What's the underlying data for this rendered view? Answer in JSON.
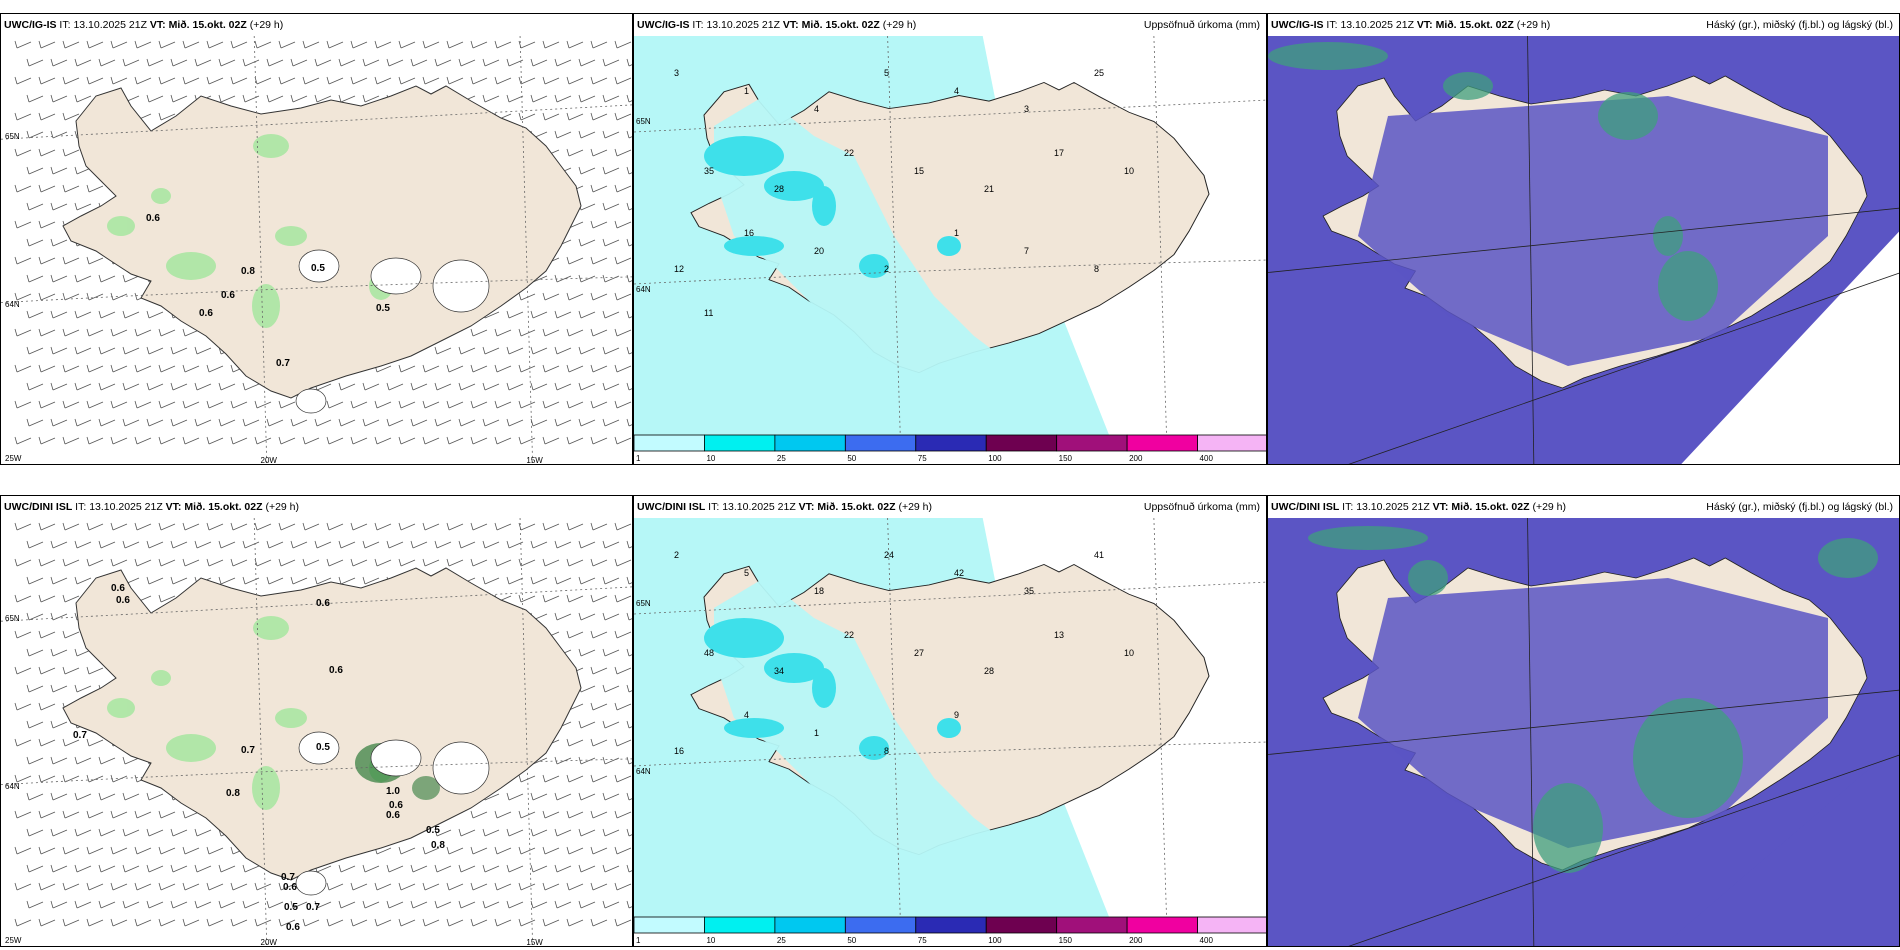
{
  "panels": [
    {
      "model": "UWC/IG-IS",
      "it_label": "IT:",
      "it_value": "13.10.2025 21Z",
      "vt_label": "VT:",
      "vt_value": "Mið. 15.okt. 02Z",
      "lead": "(+29 h)",
      "right_title": "",
      "kind": "wind",
      "values": [
        "0.6",
        "0.8",
        "0.5",
        "0.6",
        "0.6",
        "0.5",
        "0.7"
      ],
      "axis_labels": [
        "65N",
        "64N",
        "25W",
        "20W",
        "15W"
      ]
    },
    {
      "model": "UWC/IG-IS",
      "it_label": "IT:",
      "it_value": "13.10.2025 21Z",
      "vt_label": "VT:",
      "vt_value": "Mið. 15.okt. 02Z",
      "lead": "(+29 h)",
      "right_title": "Uppsöfnuð úrkoma (mm)",
      "kind": "precip",
      "values": [
        "3",
        "1",
        "4",
        "5",
        "4",
        "3",
        "25",
        "35",
        "28",
        "22",
        "15",
        "21",
        "17",
        "10",
        "12",
        "16",
        "20",
        "2",
        "1",
        "7",
        "8",
        "11"
      ],
      "axis_labels": [
        "65N",
        "64N"
      ]
    },
    {
      "model": "UWC/IG-IS",
      "it_label": "IT:",
      "it_value": "13.10.2025 21Z",
      "vt_label": "VT:",
      "vt_value": "Mið. 15.okt. 02Z",
      "lead": "(+29 h)",
      "right_title": "Háský (gr.), miðský (fj.bl.) og lágský (bl.)",
      "kind": "cloud",
      "values": [],
      "axis_labels": []
    },
    {
      "model": "UWC/DINI ISL",
      "it_label": "IT:",
      "it_value": "13.10.2025 21Z",
      "vt_label": "VT:",
      "vt_value": "Mið. 15.okt. 02Z",
      "lead": "(+29 h)",
      "right_title": "",
      "kind": "wind",
      "values": [
        "0.6",
        "0.6",
        "0.6",
        "0.6",
        "0.7",
        "0.7",
        "0.5",
        "0.8",
        "1.0",
        "0.6",
        "0.6",
        "0.5",
        "0.8",
        "0.7",
        "0.6",
        "0.5",
        "0.7",
        "0.6"
      ],
      "axis_labels": [
        "65N",
        "64N",
        "25W",
        "20W",
        "15W"
      ]
    },
    {
      "model": "UWC/DINI ISL",
      "it_label": "IT:",
      "it_value": "13.10.2025 21Z",
      "vt_label": "VT:",
      "vt_value": "Mið. 15.okt. 02Z",
      "lead": "(+29 h)",
      "right_title": "Uppsöfnuð úrkoma (mm)",
      "kind": "precip",
      "values": [
        "2",
        "5",
        "18",
        "24",
        "42",
        "35",
        "41",
        "48",
        "34",
        "22",
        "27",
        "28",
        "13",
        "10",
        "16",
        "4",
        "1",
        "8",
        "9"
      ],
      "axis_labels": [
        "65N",
        "64N"
      ]
    },
    {
      "model": "UWC/DINI ISL",
      "it_label": "IT:",
      "it_value": "13.10.2025 21Z",
      "vt_label": "VT:",
      "vt_value": "Mið. 15.okt. 02Z",
      "lead": "(+29 h)",
      "right_title": "Háský (gr.), miðský (fj.bl.) og lágský (bl.)",
      "kind": "cloud",
      "values": [],
      "axis_labels": []
    }
  ],
  "colorbar": {
    "ticks": [
      "1",
      "10",
      "25",
      "50",
      "75",
      "100",
      "150",
      "200",
      "400"
    ],
    "colors": [
      "#c2fbff",
      "#00f0f0",
      "#00c8f0",
      "#3c6cf0",
      "#2a2ab4",
      "#6e0050",
      "#a0107a",
      "#f000a0",
      "#f5b4f5"
    ]
  },
  "colors": {
    "land": "#f1e6d8",
    "precip_light": "#b6f7f7",
    "precip_mid": "#3ee0ea",
    "cloud_low": "#5b55c4",
    "cloud_mid": "#3f9f7e",
    "cloud_high": "#b9e6d4",
    "wind_green": "#a6e6a0",
    "wind_dark": "#2f7a3a"
  }
}
